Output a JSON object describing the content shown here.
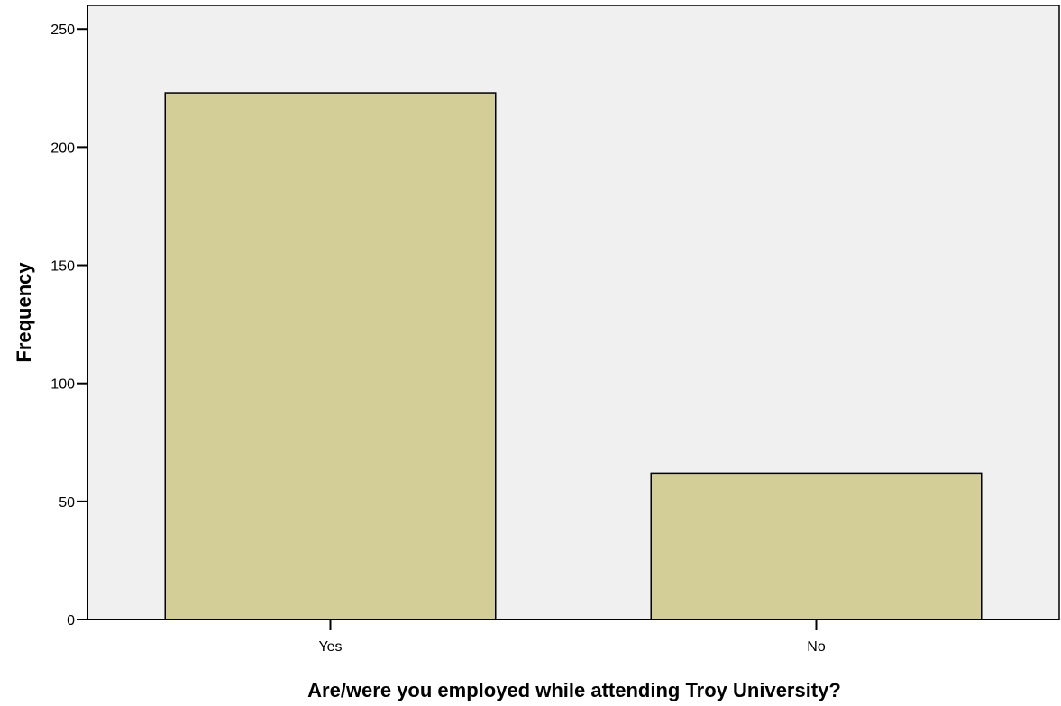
{
  "chart_data": {
    "type": "bar",
    "categories": [
      "Yes",
      "No"
    ],
    "values": [
      223,
      62
    ],
    "title": "",
    "xlabel": "Are/were you employed while attending Troy University?",
    "ylabel": "Frequency",
    "ylim": [
      0,
      260
    ],
    "yticks": [
      "0",
      "50",
      "100",
      "150",
      "200",
      "250"
    ],
    "grid": false,
    "legend": "none",
    "colors": {
      "plot_background": "#f0f0f0",
      "bar_fill": "#d3ce98",
      "bar_stroke": "#000000",
      "axis": "#000000"
    }
  }
}
